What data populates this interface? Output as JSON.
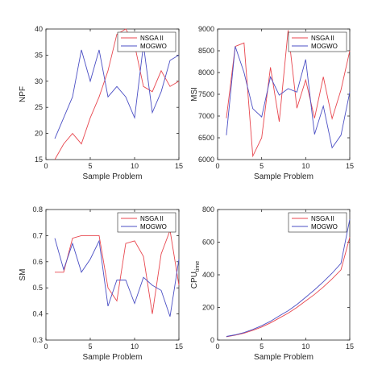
{
  "colors": {
    "nsga": "#e8474f",
    "mogwo": "#4b4fc4",
    "axis": "#262626",
    "legend_border": "#262626"
  },
  "chart_data": [
    {
      "type": "line",
      "xlabel": "Sample Problem",
      "ylabel": "NPF",
      "xlim": [
        0,
        15
      ],
      "ylim": [
        15,
        40
      ],
      "xticks": [
        0,
        5,
        10,
        15
      ],
      "yticks": [
        15,
        20,
        25,
        30,
        35,
        40
      ],
      "legend_position": "top-right",
      "x": [
        1,
        2,
        3,
        4,
        5,
        6,
        7,
        8,
        9,
        10,
        11,
        12,
        13,
        14,
        15
      ],
      "series": [
        {
          "name": "NSGA II",
          "color_key": "nsga",
          "values": [
            15,
            18,
            20,
            18,
            23,
            27,
            32,
            39,
            40,
            37,
            29,
            28,
            32,
            29,
            30
          ]
        },
        {
          "name": "MOGWO",
          "color_key": "mogwo",
          "values": [
            19,
            23,
            27,
            36,
            30,
            36,
            27,
            29,
            27,
            23,
            37,
            24,
            28,
            34,
            35
          ]
        }
      ]
    },
    {
      "type": "line",
      "xlabel": "Sample Problem",
      "ylabel": "MSI",
      "xlim": [
        0,
        15
      ],
      "ylim": [
        6000,
        9000
      ],
      "xticks": [
        0,
        5,
        10,
        15
      ],
      "yticks": [
        6000,
        6500,
        7000,
        7500,
        8000,
        8500,
        9000
      ],
      "legend_position": "top-right",
      "x": [
        1,
        2,
        3,
        4,
        5,
        6,
        7,
        8,
        9,
        10,
        11,
        12,
        13,
        14,
        15
      ],
      "series": [
        {
          "name": "NSGA II",
          "color_key": "nsga",
          "values": [
            6950,
            8600,
            8680,
            6080,
            6500,
            8120,
            6870,
            8970,
            7180,
            7830,
            6950,
            7900,
            6940,
            7600,
            8500
          ]
        },
        {
          "name": "MOGWO",
          "color_key": "mogwo",
          "values": [
            6560,
            8600,
            8000,
            7170,
            6980,
            7900,
            7480,
            7630,
            7550,
            8300,
            6580,
            7230,
            6270,
            6560,
            7550
          ]
        }
      ]
    },
    {
      "type": "line",
      "xlabel": "Sample Problem",
      "ylabel": "SM",
      "xlim": [
        0,
        15
      ],
      "ylim": [
        0.3,
        0.8
      ],
      "xticks": [
        0,
        5,
        10,
        15
      ],
      "yticks": [
        0.3,
        0.4,
        0.5,
        0.6,
        0.7,
        0.8
      ],
      "legend_position": "top-right",
      "x": [
        1,
        2,
        3,
        4,
        5,
        6,
        7,
        8,
        9,
        10,
        11,
        12,
        13,
        14,
        15
      ],
      "series": [
        {
          "name": "NSGA II",
          "color_key": "nsga",
          "values": [
            0.56,
            0.56,
            0.69,
            0.7,
            0.7,
            0.7,
            0.5,
            0.45,
            0.67,
            0.68,
            0.62,
            0.4,
            0.63,
            0.72,
            0.51
          ]
        },
        {
          "name": "MOGWO",
          "color_key": "mogwo",
          "values": [
            0.69,
            0.57,
            0.67,
            0.56,
            0.61,
            0.68,
            0.43,
            0.53,
            0.53,
            0.44,
            0.54,
            0.51,
            0.49,
            0.39,
            0.61
          ]
        }
      ]
    },
    {
      "type": "line",
      "xlabel": "Sample Problem",
      "ylabel": "CPU",
      "ylabel_sub": "time",
      "xlim": [
        0,
        15
      ],
      "ylim": [
        0,
        800
      ],
      "xticks": [
        0,
        5,
        10,
        15
      ],
      "yticks": [
        0,
        200,
        400,
        600,
        800
      ],
      "legend_position": "top-right",
      "x": [
        1,
        2,
        3,
        4,
        5,
        6,
        7,
        8,
        9,
        10,
        11,
        12,
        13,
        14,
        15
      ],
      "series": [
        {
          "name": "NSGA II",
          "color_key": "nsga",
          "values": [
            20,
            30,
            42,
            60,
            80,
            105,
            135,
            165,
            200,
            240,
            280,
            325,
            375,
            430,
            630
          ]
        },
        {
          "name": "MOGWO",
          "color_key": "mogwo",
          "values": [
            22,
            32,
            46,
            65,
            88,
            115,
            148,
            180,
            218,
            262,
            308,
            357,
            410,
            470,
            740
          ]
        }
      ]
    }
  ]
}
